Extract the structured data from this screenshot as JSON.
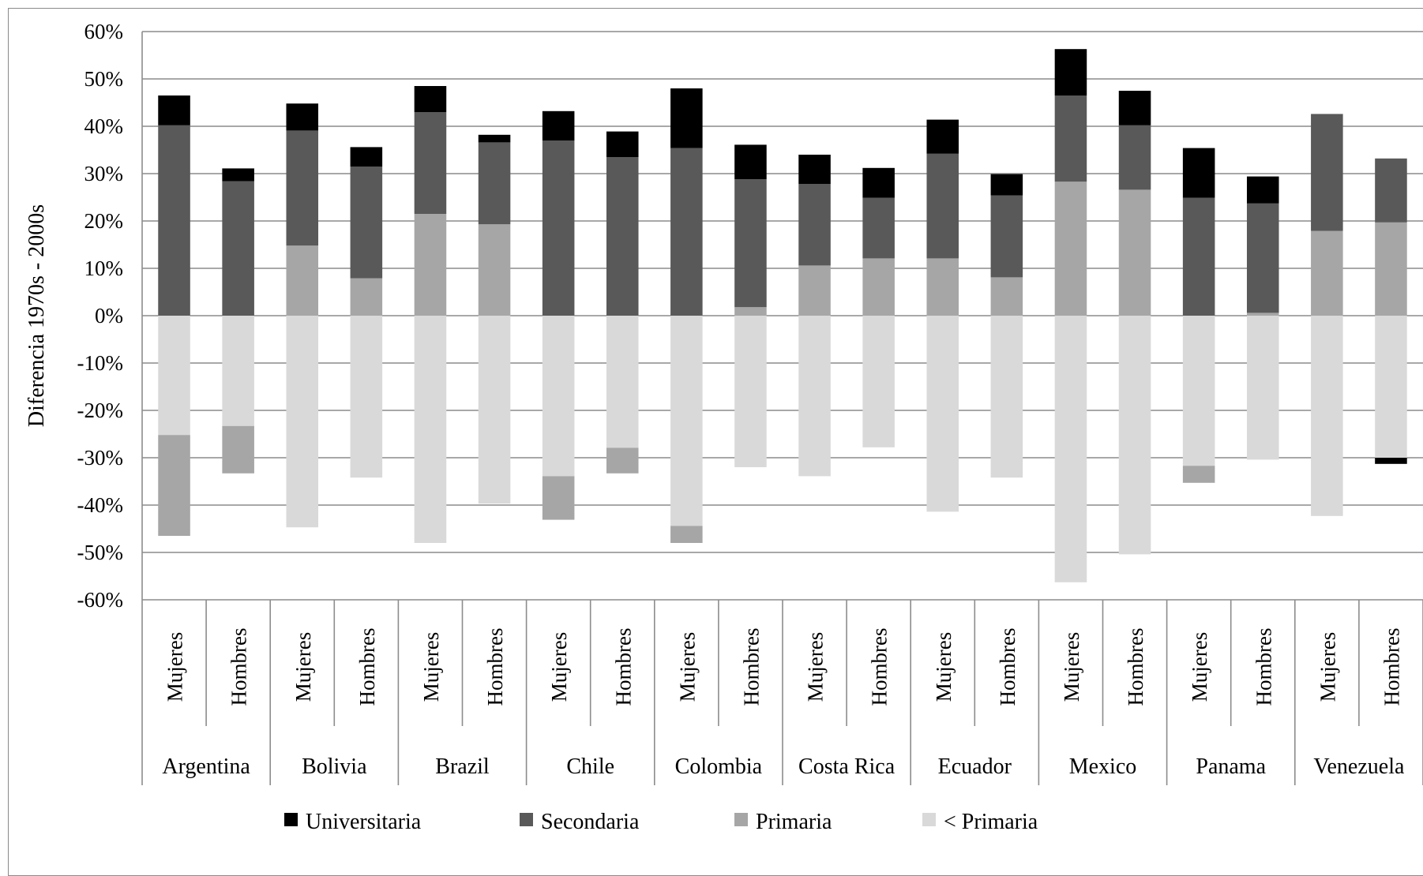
{
  "chart_data": {
    "type": "bar",
    "stacked": true,
    "ylabel": "Diferencia 1970s - 2000s",
    "ylim": [
      -60,
      60
    ],
    "y_ticks": [
      "60%",
      "50%",
      "40%",
      "30%",
      "20%",
      "10%",
      "0%",
      "-10%",
      "-20%",
      "-30%",
      "-40%",
      "-50%",
      "-60%"
    ],
    "gridlines": true,
    "legend_position": "bottom",
    "countries": [
      "Argentina",
      "Bolivia",
      "Brazil",
      "Chile",
      "Colombia",
      "Costa Rica",
      "Ecuador",
      "Mexico",
      "Panama",
      "Venezuela"
    ],
    "groups": [
      "Mujeres",
      "Hombres"
    ],
    "series": [
      {
        "name": "Universitaria",
        "color": "#000000",
        "values": [
          6.3,
          2.7,
          5.7,
          4.1,
          5.5,
          1.6,
          6.2,
          5.4,
          12.6,
          7.3,
          6.2,
          6.3,
          7.2,
          4.5,
          9.8,
          7.3,
          10.5,
          5.7,
          0.0,
          -1.3
        ]
      },
      {
        "name": "Secondaria",
        "color": "#595959",
        "values": [
          40.2,
          28.4,
          24.3,
          23.6,
          21.5,
          17.3,
          37.0,
          33.5,
          35.4,
          27.0,
          17.2,
          12.8,
          22.1,
          17.3,
          18.2,
          13.6,
          24.9,
          23.1,
          24.7,
          13.5
        ]
      },
      {
        "name": "Primaria",
        "color": "#a6a6a6",
        "values": [
          -21.3,
          -10.0,
          14.8,
          7.9,
          21.5,
          19.3,
          -9.2,
          -5.4,
          -3.6,
          1.8,
          10.6,
          12.1,
          12.1,
          8.1,
          28.3,
          26.6,
          -3.6,
          0.6,
          17.9,
          19.7
        ]
      },
      {
        "name": "< Primaria",
        "color": "#d9d9d9",
        "values": [
          -25.2,
          -23.3,
          -44.7,
          -34.2,
          -48.0,
          -39.7,
          -33.9,
          -27.9,
          -44.4,
          -32.0,
          -33.9,
          -27.8,
          -41.4,
          -34.2,
          -56.3,
          -50.4,
          -31.7,
          -30.4,
          -42.3,
          -30.0
        ]
      }
    ]
  }
}
